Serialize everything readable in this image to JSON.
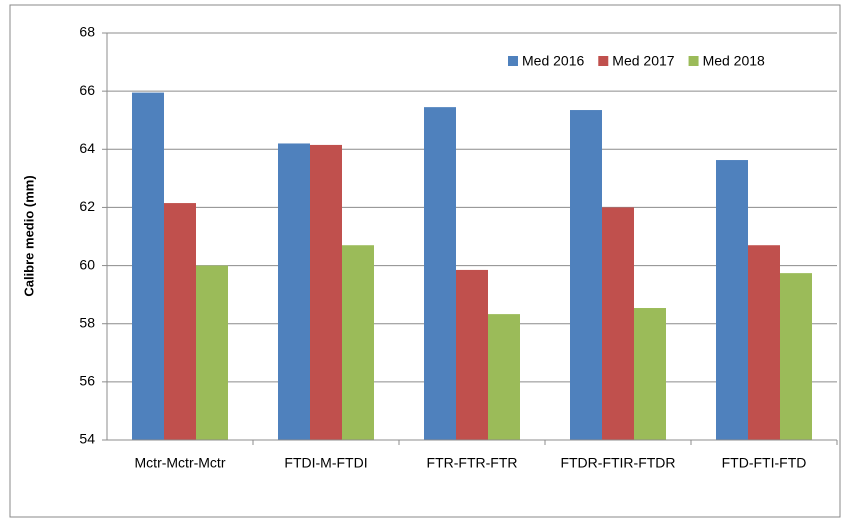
{
  "chart_data": {
    "type": "bar",
    "y_label": "Calibre medio (mm)",
    "categories": [
      "Mctr-Mctr-Mctr",
      "FTDI-M-FTDI",
      "FTR-FTR-FTR",
      "FTDR-FTIR-FTDR",
      "FTD-FTI-FTD"
    ],
    "series": [
      {
        "name": "Med 2016",
        "color": "#4f81bd",
        "values": [
          65.95,
          64.2,
          65.45,
          65.35,
          63.63
        ]
      },
      {
        "name": "Med 2017",
        "color": "#c0504d",
        "values": [
          62.15,
          64.15,
          59.85,
          62.0,
          60.7
        ]
      },
      {
        "name": "Med 2018",
        "color": "#9bbb59",
        "values": [
          60.0,
          60.7,
          58.33,
          58.54,
          59.74
        ]
      }
    ],
    "ylim": [
      54,
      68
    ],
    "yticks": [
      54,
      56,
      58,
      60,
      62,
      64,
      66,
      68
    ],
    "grid": true,
    "legend": "top-right"
  }
}
